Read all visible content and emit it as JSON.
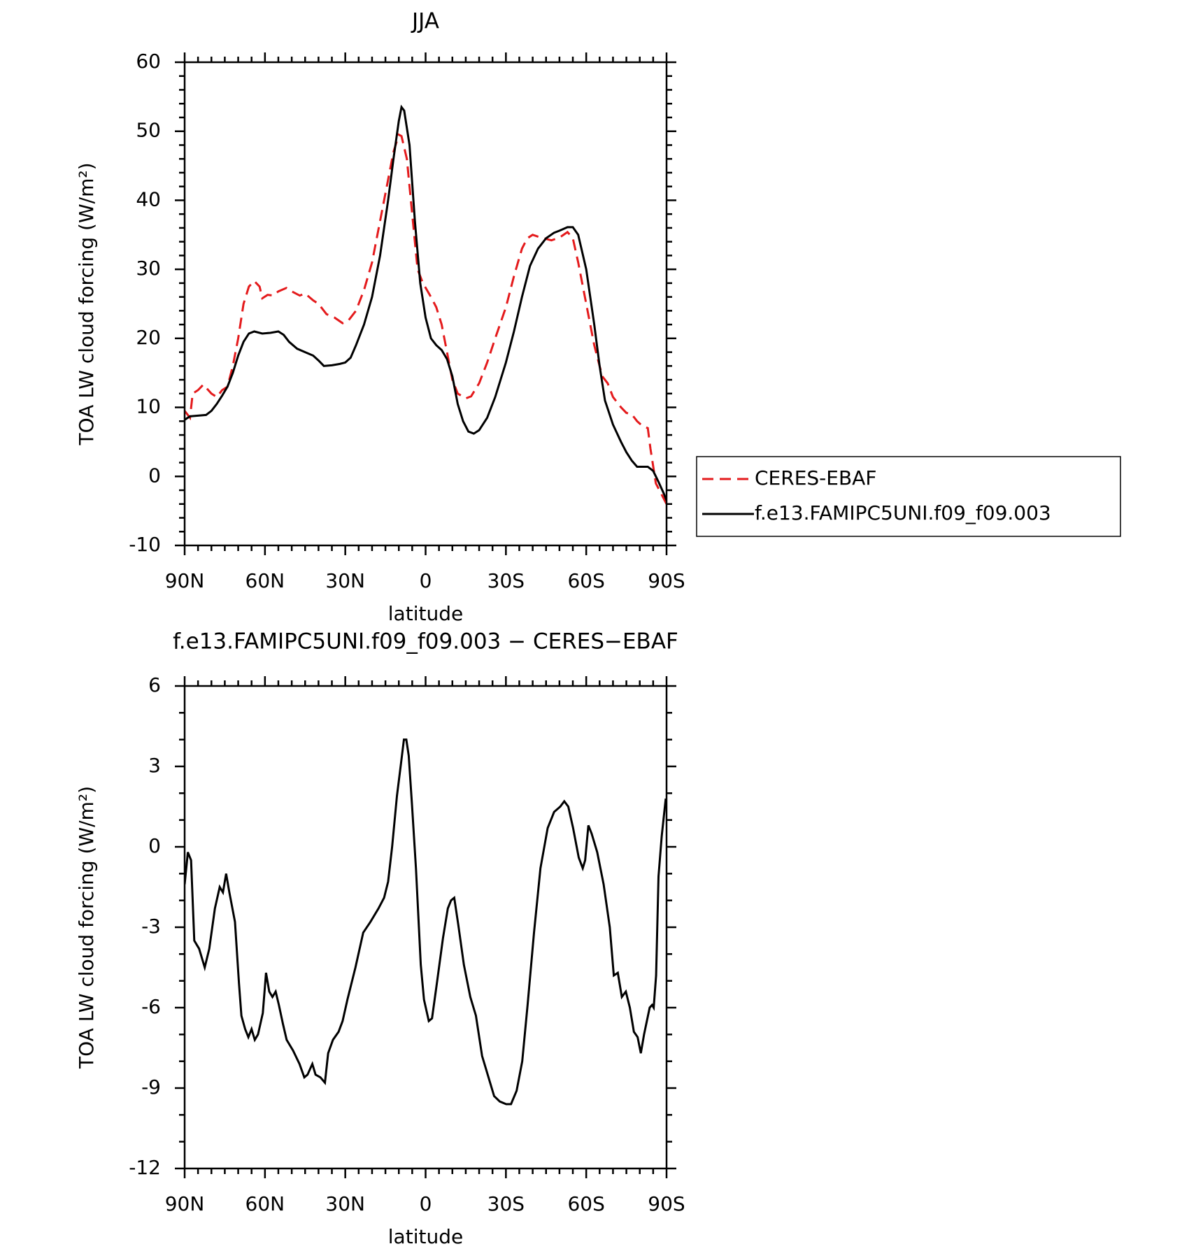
{
  "chart_data": [
    {
      "type": "line",
      "title": "JJA",
      "xlabel": "latitude",
      "ylabel": "TOA LW cloud forcing (W/m²)",
      "xlim": [
        90,
        -90
      ],
      "xticks": [
        {
          "value": 90,
          "label": "90N"
        },
        {
          "value": 60,
          "label": "60N"
        },
        {
          "value": 30,
          "label": "30N"
        },
        0,
        {
          "value": -30,
          "label": "30S"
        },
        {
          "value": -60,
          "label": "60S"
        },
        {
          "value": -90,
          "label": "90S"
        }
      ],
      "ylim": [
        -10,
        60
      ],
      "yticks": [
        -10,
        0,
        10,
        20,
        30,
        40,
        50,
        60
      ],
      "legend": "right",
      "series": [
        {
          "name": "CERES-EBAF",
          "color": "#e41a1c",
          "linestyle": "dashed",
          "x": [
            90,
            88,
            87,
            85,
            83,
            80,
            78,
            76,
            74,
            72,
            70,
            68,
            66,
            64,
            62,
            61,
            59,
            57,
            55,
            52,
            50,
            47,
            45,
            42,
            40,
            37,
            34,
            31,
            29,
            26,
            23,
            20,
            17,
            14,
            12,
            10,
            9,
            7,
            5,
            3,
            1,
            -2,
            -4,
            -6,
            -8,
            -10,
            -12,
            -15,
            -17,
            -20,
            -23,
            -26,
            -30,
            -33,
            -36,
            -38,
            -40,
            -43,
            -47,
            -50,
            -53,
            -55,
            -57,
            -60,
            -63,
            -66,
            -68,
            -70,
            -73,
            -75,
            -77,
            -79,
            -81,
            -83,
            -84,
            -86,
            -88,
            -90
          ],
          "values": [
            9.5,
            8.5,
            12,
            12.5,
            13.3,
            12,
            11.5,
            12.5,
            13,
            16,
            20,
            25,
            27.5,
            28.3,
            27.5,
            25.8,
            26.3,
            26.2,
            26.8,
            27.3,
            26.8,
            26.2,
            26.5,
            25.5,
            25,
            23.5,
            23,
            22.2,
            22.5,
            24,
            27,
            31,
            37,
            43,
            47,
            49.5,
            49.3,
            46,
            38,
            30,
            28,
            26,
            24.5,
            22,
            18,
            14,
            12,
            11.3,
            11.6,
            13.5,
            16.5,
            20,
            24.5,
            29,
            33,
            34.5,
            35,
            34.6,
            34.2,
            34.6,
            35.4,
            34.5,
            31,
            25,
            19,
            14.5,
            13.5,
            11.5,
            10,
            9.2,
            9,
            8,
            7.3,
            7,
            4,
            -1,
            -2.5,
            -4
          ]
        },
        {
          "name": "f.e13.FAMIPC5UNI.f09_f09.003",
          "color": "#000000",
          "linestyle": "solid",
          "x": [
            90,
            88,
            85,
            82,
            80,
            78,
            76,
            74,
            72,
            70,
            68,
            66,
            64,
            61,
            58,
            55,
            53,
            51,
            48,
            45,
            42,
            40,
            38,
            35,
            32,
            30,
            28,
            26,
            23,
            20,
            17,
            14,
            12,
            10,
            9,
            8,
            6,
            4,
            2,
            0,
            -2,
            -4,
            -6,
            -8,
            -10,
            -12,
            -14,
            -16,
            -18,
            -20,
            -23,
            -26,
            -30,
            -33,
            -36,
            -39,
            -42,
            -45,
            -48,
            -50,
            -53,
            -55,
            -57,
            -60,
            -63,
            -65,
            -67,
            -70,
            -73,
            -75,
            -77,
            -79,
            -83,
            -85,
            -87,
            -89,
            -90
          ],
          "values": [
            8.2,
            8.7,
            8.8,
            8.9,
            9.5,
            10.5,
            11.7,
            13,
            15,
            17.5,
            19.5,
            20.7,
            21,
            20.7,
            20.8,
            21,
            20.5,
            19.5,
            18.5,
            18,
            17.5,
            16.8,
            16,
            16.1,
            16.3,
            16.5,
            17.2,
            19,
            22,
            26,
            32,
            40,
            46,
            51.5,
            53.5,
            53,
            48,
            37,
            28,
            23,
            20,
            19,
            18.3,
            17,
            14.5,
            10.5,
            8,
            6.5,
            6.2,
            6.7,
            8.5,
            11.5,
            16.5,
            21,
            26,
            30.5,
            33,
            34.5,
            35.3,
            35.6,
            36.1,
            36.1,
            35,
            30,
            22,
            16,
            11,
            7.5,
            5,
            3.5,
            2.3,
            1.4,
            1.4,
            0.8,
            -0.8,
            -2.5,
            -3.5
          ]
        }
      ]
    },
    {
      "type": "line",
      "title": "f.e13.FAMIPC5UNI.f09_f09.003 − CERES−EBAF",
      "xlabel": "latitude",
      "ylabel": "TOA LW cloud forcing (W/m²)",
      "xlim": [
        90,
        -90
      ],
      "xticks": [
        {
          "value": 90,
          "label": "90N"
        },
        {
          "value": 60,
          "label": "60N"
        },
        {
          "value": 30,
          "label": "30N"
        },
        0,
        {
          "value": -30,
          "label": "30S"
        },
        {
          "value": -60,
          "label": "60S"
        },
        {
          "value": -90,
          "label": "90S"
        }
      ],
      "ylim": [
        -12,
        6
      ],
      "yticks": [
        -12,
        -9,
        -6,
        -3,
        0,
        3,
        6
      ],
      "series": [
        {
          "color": "#000000",
          "linestyle": "solid",
          "x": [
            90,
            88.8,
            87.6,
            86.4,
            84.6,
            82.5,
            80.8,
            78.7,
            76.9,
            75.7,
            74.5,
            73.3,
            71.2,
            69.7,
            68.8,
            67.4,
            66.2,
            65,
            63.8,
            62.6,
            60.8,
            59.6,
            58.4,
            57.2,
            56,
            54.8,
            53.3,
            51.9,
            49.5,
            47.1,
            45.3,
            44.1,
            42.3,
            41.1,
            39.3,
            37.6,
            36.4,
            34.6,
            32.5,
            31,
            29.2,
            26.2,
            23.3,
            20.6,
            17.6,
            15.5,
            14,
            12.5,
            10.7,
            9.2,
            8.1,
            7.2,
            6.3,
            5.1,
            3.6,
            1.8,
            0.6,
            -1.2,
            -2.4,
            -4.2,
            -6.5,
            -8.3,
            -9.5,
            -10.7,
            -12.2,
            -14.3,
            -16.7,
            -18.8,
            -21.1,
            -23.5,
            -25.6,
            -27.7,
            -30.1,
            -31.9,
            -34,
            -36.1,
            -38.1,
            -40.5,
            -42.9,
            -45.6,
            -48,
            -50.3,
            -51.8,
            -53.3,
            -55.1,
            -57.2,
            -58.7,
            -59.6,
            -60.8,
            -62,
            -64.1,
            -66.5,
            -68.8,
            -70.3,
            -71.8,
            -73.3,
            -74.8,
            -76.3,
            -77.8,
            -79.2,
            -80.4,
            -81.6,
            -83.7,
            -84.6,
            -85.2,
            -86.1,
            -87,
            -88.2,
            -89.7
          ],
          "values": [
            -1.4,
            -0.2,
            -0.5,
            -3.5,
            -3.8,
            -4.5,
            -3.8,
            -2.3,
            -1.5,
            -1.7,
            -1.0,
            -1.7,
            -2.8,
            -5.1,
            -6.3,
            -6.8,
            -7.1,
            -6.8,
            -7.2,
            -7.0,
            -6.2,
            -4.7,
            -5.4,
            -5.6,
            -5.4,
            -5.9,
            -6.6,
            -7.2,
            -7.6,
            -8.1,
            -8.6,
            -8.5,
            -8.1,
            -8.5,
            -8.6,
            -8.8,
            -7.7,
            -7.2,
            -6.9,
            -6.5,
            -5.7,
            -4.5,
            -3.2,
            -2.8,
            -2.3,
            -1.9,
            -1.3,
            0,
            1.9,
            3.1,
            4.0,
            4.0,
            3.4,
            1.6,
            -0.8,
            -4.4,
            -5.7,
            -6.5,
            -6.4,
            -5.1,
            -3.4,
            -2.3,
            -2.0,
            -1.9,
            -2.9,
            -4.4,
            -5.6,
            -6.3,
            -7.8,
            -8.6,
            -9.3,
            -9.5,
            -9.6,
            -9.6,
            -9.1,
            -8.0,
            -5.9,
            -3.2,
            -0.8,
            0.7,
            1.3,
            1.5,
            1.7,
            1.5,
            0.7,
            -0.4,
            -0.8,
            -0.5,
            0.8,
            0.5,
            -0.2,
            -1.4,
            -3.0,
            -4.8,
            -4.7,
            -5.6,
            -5.4,
            -6.0,
            -6.9,
            -7.1,
            -7.7,
            -7.0,
            -6.0,
            -5.9,
            -6.0,
            -4.8,
            -1.1,
            0.4,
            1.8
          ]
        }
      ]
    }
  ]
}
